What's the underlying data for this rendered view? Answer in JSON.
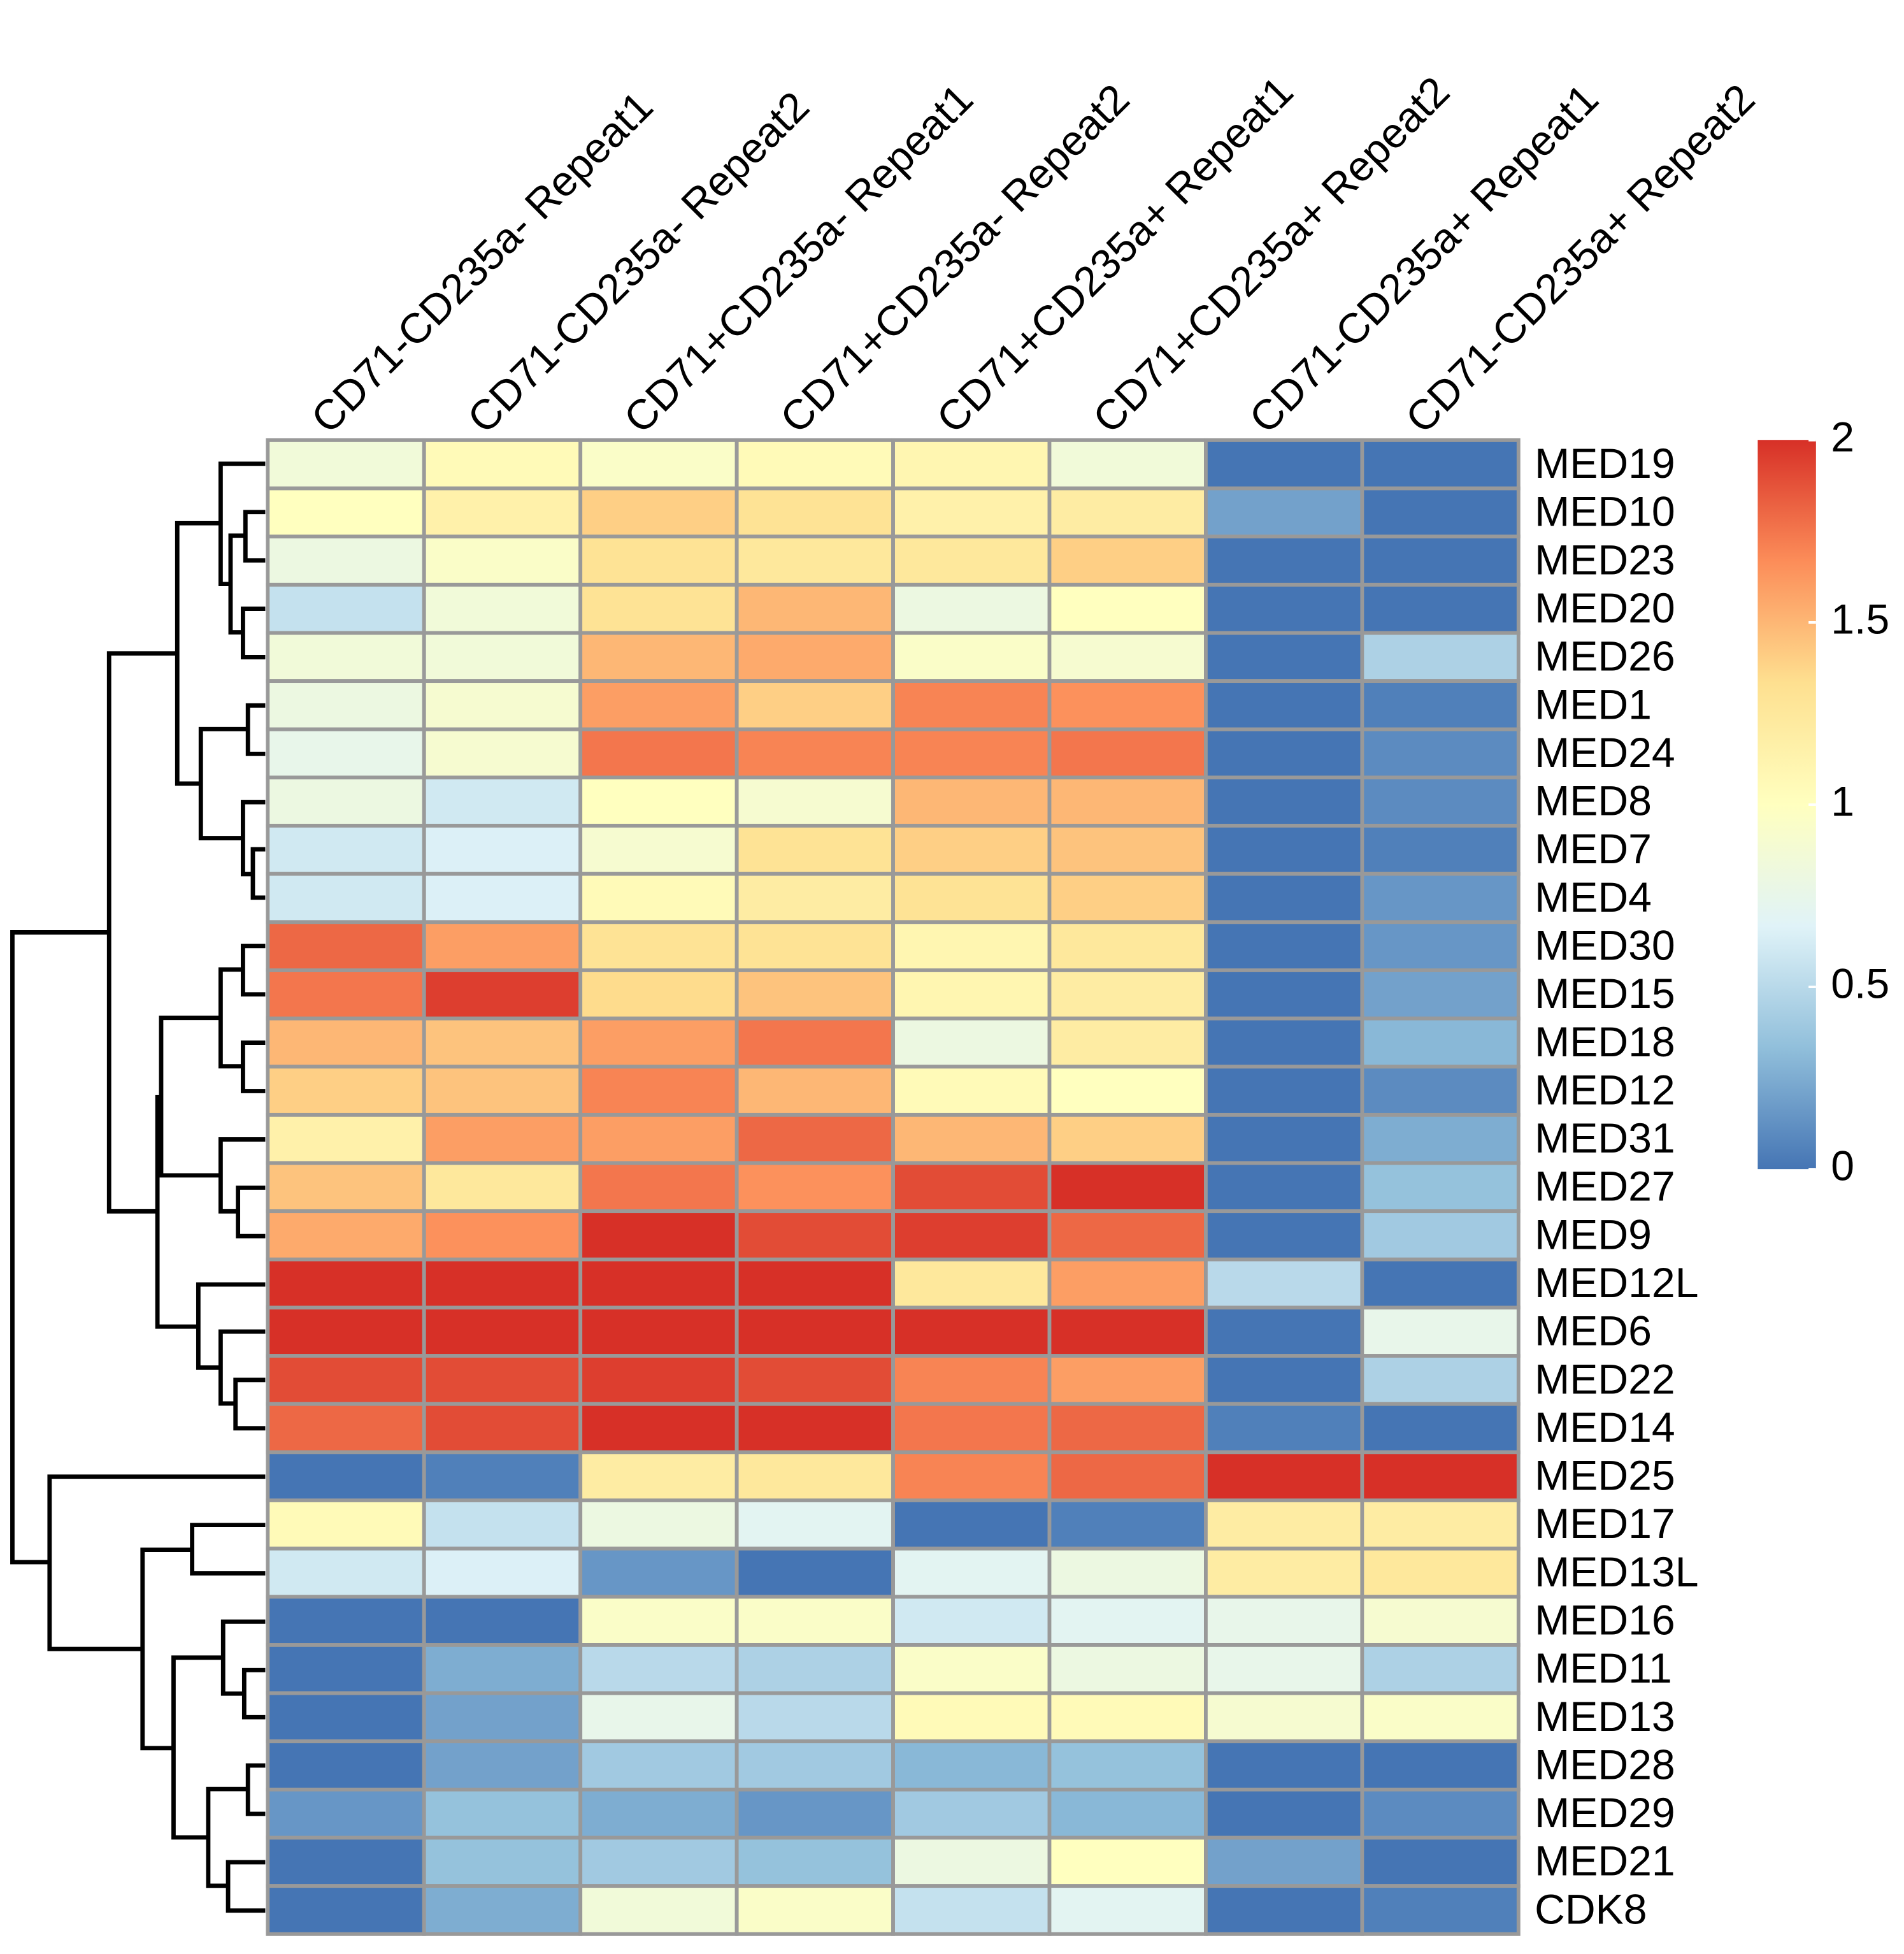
{
  "chart_data": {
    "type": "heatmap",
    "columns": [
      "CD71-CD235a- Repeat1",
      "CD71-CD235a- Repeat2",
      "CD71+CD235a- Repeat1",
      "CD71+CD235a- Repeat2",
      "CD71+CD235a+ Repeat1",
      "CD71+CD235a+ Repeat2",
      "CD71-CD235a+ Repeat1",
      "CD71-CD235a+ Repeat2"
    ],
    "rows": [
      "MED19",
      "MED10",
      "MED23",
      "MED20",
      "MED26",
      "MED1",
      "MED24",
      "MED8",
      "MED7",
      "MED4",
      "MED30",
      "MED15",
      "MED18",
      "MED12",
      "MED31",
      "MED27",
      "MED9",
      "MED12L",
      "MED6",
      "MED22",
      "MED14",
      "MED25",
      "MED17",
      "MED13L",
      "MED16",
      "MED11",
      "MED13",
      "MED28",
      "MED29",
      "MED21",
      "CDK8"
    ],
    "values": [
      [
        0.85,
        1.05,
        0.95,
        1.05,
        1.1,
        0.85,
        0,
        0
      ],
      [
        1.0,
        1.15,
        1.4,
        1.3,
        1.15,
        1.2,
        0.2,
        0
      ],
      [
        0.8,
        0.95,
        1.3,
        1.25,
        1.25,
        1.4,
        0,
        0
      ],
      [
        0.55,
        0.85,
        1.3,
        1.5,
        0.8,
        1.0,
        0,
        0
      ],
      [
        0.85,
        0.85,
        1.5,
        1.55,
        0.95,
        0.9,
        0,
        0.45
      ],
      [
        0.8,
        0.9,
        1.6,
        1.4,
        1.7,
        1.65,
        0,
        0.05
      ],
      [
        0.75,
        0.9,
        1.75,
        1.7,
        1.7,
        1.75,
        0,
        0.1
      ],
      [
        0.8,
        0.6,
        1.0,
        0.9,
        1.5,
        1.5,
        0,
        0.1
      ],
      [
        0.6,
        0.65,
        0.9,
        1.3,
        1.4,
        1.45,
        0,
        0.05
      ],
      [
        0.6,
        0.65,
        1.05,
        1.2,
        1.3,
        1.4,
        0,
        0.15
      ],
      [
        1.8,
        1.6,
        1.3,
        1.3,
        1.1,
        1.25,
        0,
        0.15
      ],
      [
        1.75,
        1.95,
        1.35,
        1.45,
        1.1,
        1.2,
        0,
        0.2
      ],
      [
        1.5,
        1.45,
        1.6,
        1.75,
        0.8,
        1.2,
        0,
        0.3
      ],
      [
        1.4,
        1.45,
        1.7,
        1.5,
        1.05,
        1.0,
        0,
        0.1
      ],
      [
        1.15,
        1.6,
        1.6,
        1.8,
        1.5,
        1.4,
        0,
        0.25
      ],
      [
        1.45,
        1.25,
        1.75,
        1.65,
        1.9,
        2.0,
        0,
        0.35
      ],
      [
        1.55,
        1.65,
        2.0,
        1.9,
        1.95,
        1.8,
        0,
        0.4
      ],
      [
        2,
        2,
        2,
        2,
        1.25,
        1.6,
        0.5,
        0
      ],
      [
        2,
        2,
        2,
        2,
        2,
        2,
        0,
        0.75
      ],
      [
        1.9,
        1.9,
        1.95,
        1.9,
        1.7,
        1.6,
        0,
        0.45
      ],
      [
        1.8,
        1.9,
        2,
        2,
        1.75,
        1.8,
        0.05,
        0
      ],
      [
        0,
        0.05,
        1.2,
        1.25,
        1.7,
        1.8,
        2,
        2
      ],
      [
        1.05,
        0.55,
        0.8,
        0.7,
        0,
        0.05,
        1.2,
        1.2
      ],
      [
        0.6,
        0.65,
        0.15,
        0,
        0.7,
        0.8,
        1.2,
        1.25
      ],
      [
        0,
        0,
        0.95,
        0.95,
        0.6,
        0.7,
        0.75,
        0.9
      ],
      [
        0,
        0.25,
        0.5,
        0.45,
        0.95,
        0.8,
        0.75,
        0.45
      ],
      [
        0,
        0.2,
        0.75,
        0.5,
        1.05,
        1.05,
        0.9,
        0.95
      ],
      [
        0,
        0.2,
        0.4,
        0.4,
        0.3,
        0.35,
        0,
        0
      ],
      [
        0.15,
        0.35,
        0.25,
        0.15,
        0.4,
        0.3,
        0,
        0.1
      ],
      [
        0,
        0.35,
        0.4,
        0.35,
        0.8,
        1.0,
        0.2,
        0
      ],
      [
        0,
        0.25,
        0.85,
        0.95,
        0.55,
        0.7,
        0,
        0.05
      ]
    ],
    "zlim": [
      0,
      2
    ],
    "zticks": [
      0,
      0.5,
      1,
      1.5,
      2
    ],
    "colors": [
      "#4575B4",
      "#91BFDB",
      "#E0F3F8",
      "#FFFFBF",
      "#FEE090",
      "#FC8D59",
      "#D73027"
    ]
  }
}
